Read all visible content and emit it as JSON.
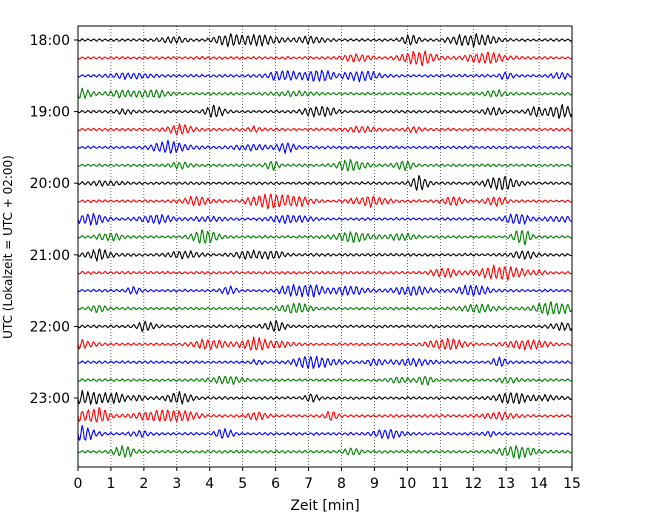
{
  "chart_data": {
    "type": "line",
    "title": "",
    "xlabel": "Zeit  [min]",
    "ylabel": "UTC (Lokalzeit = UTC + 02:00)",
    "xlim": [
      0,
      15
    ],
    "x_ticks": [
      "0",
      "1",
      "2",
      "3",
      "4",
      "5",
      "6",
      "7",
      "8",
      "9",
      "10",
      "11",
      "12",
      "13",
      "14",
      "15"
    ],
    "y_tick_labels": [
      "18:00",
      "19:00",
      "20:00",
      "21:00",
      "22:00",
      "23:00"
    ],
    "grid": "vertical dotted at each minute",
    "trace_colors": [
      "#000000",
      "#ff0000",
      "#0000ff",
      "#008000"
    ],
    "trace_count": 24,
    "trace_interval_minutes": 15,
    "first_trace": "18:00",
    "last_trace": "23:45"
  }
}
